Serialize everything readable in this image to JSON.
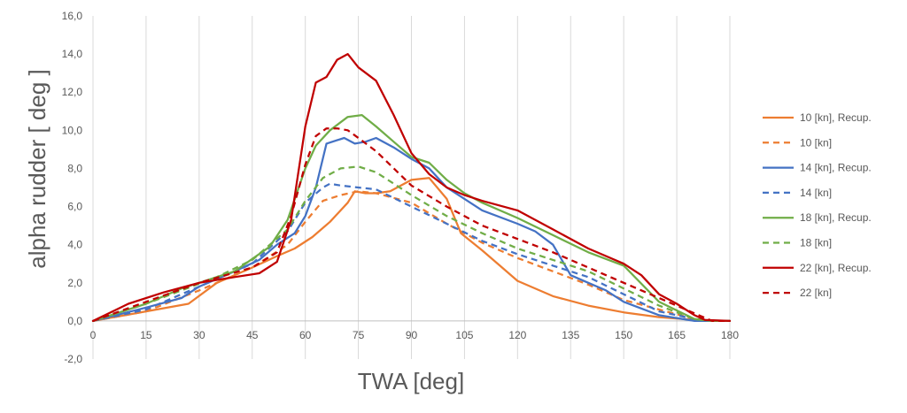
{
  "chart_data": {
    "type": "line",
    "xlabel": "TWA [deg]",
    "ylabel": "alpha rudder [ deg ]",
    "xlim": [
      0,
      180
    ],
    "ylim": [
      -2,
      16
    ],
    "x_ticks": [
      "0",
      "15",
      "30",
      "45",
      "60",
      "75",
      "90",
      "105",
      "120",
      "135",
      "150",
      "165",
      "180"
    ],
    "y_ticks": [
      "-2,0",
      "0,0",
      "2,0",
      "4,0",
      "6,0",
      "8,0",
      "10,0",
      "12,0",
      "14,0",
      "16,0"
    ],
    "grid": "vertical",
    "legend_position": "right",
    "series": [
      {
        "name": "10  [kn], Recup.",
        "color": "#ED7D31",
        "dash": "solid",
        "points": [
          [
            0,
            0
          ],
          [
            15,
            0.5
          ],
          [
            27,
            0.9
          ],
          [
            35,
            2.0
          ],
          [
            45,
            2.8
          ],
          [
            52,
            3.4
          ],
          [
            57,
            3.8
          ],
          [
            62,
            4.4
          ],
          [
            67,
            5.2
          ],
          [
            72,
            6.2
          ],
          [
            74,
            6.8
          ],
          [
            77,
            6.7
          ],
          [
            80,
            6.7
          ],
          [
            84,
            6.8
          ],
          [
            90,
            7.4
          ],
          [
            95,
            7.5
          ],
          [
            100,
            6.4
          ],
          [
            104,
            4.6
          ],
          [
            110,
            3.7
          ],
          [
            115,
            2.9
          ],
          [
            120,
            2.1
          ],
          [
            130,
            1.3
          ],
          [
            140,
            0.8
          ],
          [
            150,
            0.45
          ],
          [
            160,
            0.2
          ],
          [
            170,
            0.05
          ],
          [
            175,
            0
          ],
          [
            180,
            0
          ]
        ]
      },
      {
        "name": "10  [kn]",
        "color": "#ED7D31",
        "dash": "dashed",
        "points": [
          [
            0,
            0
          ],
          [
            15,
            0.5
          ],
          [
            30,
            1.6
          ],
          [
            45,
            2.8
          ],
          [
            55,
            4.0
          ],
          [
            60,
            5.2
          ],
          [
            65,
            6.3
          ],
          [
            70,
            6.6
          ],
          [
            75,
            6.8
          ],
          [
            80,
            6.7
          ],
          [
            90,
            6.2
          ],
          [
            100,
            5.1
          ],
          [
            110,
            4.1
          ],
          [
            120,
            3.3
          ],
          [
            130,
            2.6
          ],
          [
            140,
            1.9
          ],
          [
            150,
            1.1
          ],
          [
            160,
            0.6
          ],
          [
            170,
            0.1
          ],
          [
            175,
            0
          ],
          [
            180,
            0
          ]
        ]
      },
      {
        "name": "14  [kn], Recup.",
        "color": "#4472C4",
        "dash": "solid",
        "points": [
          [
            0,
            0
          ],
          [
            15,
            0.7
          ],
          [
            25,
            1.2
          ],
          [
            30,
            1.8
          ],
          [
            40,
            2.6
          ],
          [
            47,
            3.2
          ],
          [
            52,
            4.0
          ],
          [
            57,
            4.6
          ],
          [
            60,
            5.5
          ],
          [
            63,
            7.0
          ],
          [
            66,
            9.3
          ],
          [
            71,
            9.6
          ],
          [
            74,
            9.3
          ],
          [
            77,
            9.4
          ],
          [
            80,
            9.6
          ],
          [
            85,
            9.1
          ],
          [
            90,
            8.5
          ],
          [
            95,
            8.0
          ],
          [
            100,
            7.0
          ],
          [
            105,
            6.4
          ],
          [
            110,
            5.8
          ],
          [
            120,
            5.1
          ],
          [
            125,
            4.7
          ],
          [
            130,
            4.0
          ],
          [
            135,
            2.4
          ],
          [
            140,
            2.0
          ],
          [
            145,
            1.6
          ],
          [
            150,
            1.0
          ],
          [
            160,
            0.3
          ],
          [
            170,
            0
          ],
          [
            175,
            0
          ],
          [
            180,
            0
          ]
        ]
      },
      {
        "name": "14  [kn]",
        "color": "#4472C4",
        "dash": "dashed",
        "points": [
          [
            0,
            0
          ],
          [
            15,
            0.6
          ],
          [
            30,
            1.8
          ],
          [
            45,
            3.0
          ],
          [
            55,
            4.7
          ],
          [
            60,
            6.2
          ],
          [
            65,
            7.0
          ],
          [
            67,
            7.2
          ],
          [
            70,
            7.1
          ],
          [
            80,
            6.9
          ],
          [
            90,
            6.0
          ],
          [
            100,
            5.1
          ],
          [
            110,
            4.2
          ],
          [
            120,
            3.5
          ],
          [
            130,
            2.9
          ],
          [
            140,
            2.3
          ],
          [
            150,
            1.4
          ],
          [
            160,
            0.5
          ],
          [
            170,
            0.1
          ],
          [
            175,
            0
          ],
          [
            180,
            0
          ]
        ]
      },
      {
        "name": "18  [kn], Recup.",
        "color": "#70AD47",
        "dash": "solid",
        "points": [
          [
            0,
            0
          ],
          [
            15,
            0.9
          ],
          [
            25,
            1.7
          ],
          [
            30,
            2.0
          ],
          [
            40,
            2.6
          ],
          [
            50,
            3.9
          ],
          [
            55,
            5.3
          ],
          [
            60,
            8.0
          ],
          [
            63,
            9.2
          ],
          [
            67,
            10.0
          ],
          [
            72,
            10.7
          ],
          [
            76,
            10.8
          ],
          [
            80,
            10.2
          ],
          [
            85,
            9.4
          ],
          [
            90,
            8.6
          ],
          [
            95,
            8.3
          ],
          [
            100,
            7.4
          ],
          [
            105,
            6.7
          ],
          [
            110,
            6.2
          ],
          [
            120,
            5.4
          ],
          [
            130,
            4.5
          ],
          [
            140,
            3.6
          ],
          [
            150,
            2.9
          ],
          [
            160,
            1.0
          ],
          [
            170,
            0.1
          ],
          [
            175,
            0
          ],
          [
            180,
            0
          ]
        ]
      },
      {
        "name": "18  [kn]",
        "color": "#70AD47",
        "dash": "dashed",
        "points": [
          [
            0,
            0
          ],
          [
            15,
            0.9
          ],
          [
            25,
            1.6
          ],
          [
            35,
            2.3
          ],
          [
            45,
            3.2
          ],
          [
            55,
            4.8
          ],
          [
            60,
            6.3
          ],
          [
            65,
            7.5
          ],
          [
            70,
            8.0
          ],
          [
            75,
            8.1
          ],
          [
            80,
            7.8
          ],
          [
            90,
            6.6
          ],
          [
            100,
            5.5
          ],
          [
            110,
            4.6
          ],
          [
            120,
            3.8
          ],
          [
            130,
            3.2
          ],
          [
            140,
            2.6
          ],
          [
            150,
            1.7
          ],
          [
            160,
            0.8
          ],
          [
            170,
            0.1
          ],
          [
            175,
            0
          ],
          [
            180,
            0
          ]
        ]
      },
      {
        "name": "22  [kn], Recup.",
        "color": "#C00000",
        "dash": "solid",
        "points": [
          [
            0,
            0
          ],
          [
            10,
            0.9
          ],
          [
            20,
            1.5
          ],
          [
            30,
            2.0
          ],
          [
            40,
            2.3
          ],
          [
            47,
            2.5
          ],
          [
            52,
            3.1
          ],
          [
            56,
            5.3
          ],
          [
            60,
            10.2
          ],
          [
            63,
            12.5
          ],
          [
            66,
            12.8
          ],
          [
            69,
            13.7
          ],
          [
            72,
            14.0
          ],
          [
            75,
            13.3
          ],
          [
            80,
            12.6
          ],
          [
            85,
            10.8
          ],
          [
            90,
            8.8
          ],
          [
            95,
            7.7
          ],
          [
            100,
            7.0
          ],
          [
            105,
            6.6
          ],
          [
            110,
            6.3
          ],
          [
            120,
            5.8
          ],
          [
            130,
            4.8
          ],
          [
            140,
            3.8
          ],
          [
            150,
            3.0
          ],
          [
            155,
            2.4
          ],
          [
            160,
            1.4
          ],
          [
            165,
            0.9
          ],
          [
            170,
            0.3
          ],
          [
            173,
            0.05
          ],
          [
            180,
            0
          ]
        ]
      },
      {
        "name": "22  [kn]",
        "color": "#C00000",
        "dash": "dashed",
        "points": [
          [
            0,
            0
          ],
          [
            15,
            1.0
          ],
          [
            30,
            2.0
          ],
          [
            45,
            2.8
          ],
          [
            52,
            3.6
          ],
          [
            56,
            5.5
          ],
          [
            60,
            8.2
          ],
          [
            63,
            9.7
          ],
          [
            66,
            10.1
          ],
          [
            69,
            10.1
          ],
          [
            72,
            10.0
          ],
          [
            75,
            9.6
          ],
          [
            80,
            8.9
          ],
          [
            90,
            7.1
          ],
          [
            100,
            6.0
          ],
          [
            110,
            5.0
          ],
          [
            120,
            4.3
          ],
          [
            130,
            3.6
          ],
          [
            140,
            2.8
          ],
          [
            150,
            2.0
          ],
          [
            160,
            1.2
          ],
          [
            170,
            0.4
          ],
          [
            175,
            0
          ],
          [
            180,
            0
          ]
        ]
      }
    ]
  }
}
